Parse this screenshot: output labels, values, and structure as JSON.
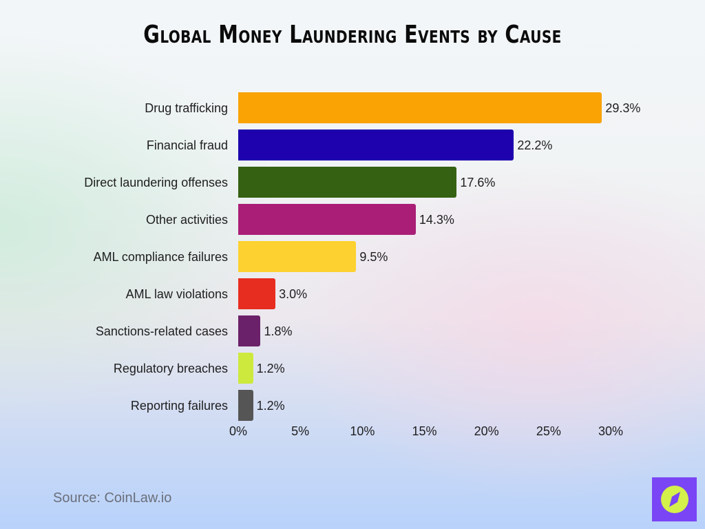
{
  "title": "Global Money Laundering Events by Cause",
  "source": "Source: CoinLaw.io",
  "logo": {
    "icon": "compass-icon",
    "bg_color": "#7a45f5",
    "circle_color": "#d4f04a"
  },
  "axis": {
    "ticks": [
      "0%",
      "5%",
      "10%",
      "15%",
      "20%",
      "25%",
      "30%"
    ],
    "tick_values": [
      0,
      5,
      10,
      15,
      20,
      25,
      30
    ]
  },
  "chart_data": {
    "type": "bar",
    "orientation": "horizontal",
    "title": "Global Money Laundering Events by Cause",
    "xlabel": "",
    "ylabel": "",
    "xlim": [
      0,
      30
    ],
    "x_ticks": [
      "0%",
      "5%",
      "10%",
      "15%",
      "20%",
      "25%",
      "30%"
    ],
    "grid": false,
    "legend": "none",
    "categories": [
      "Drug trafficking",
      "Financial fraud",
      "Direct laundering offenses",
      "Other activities",
      "AML compliance failures",
      "AML law violations",
      "Sanctions-related cases",
      "Regulatory breaches",
      "Reporting failures"
    ],
    "values": [
      29.3,
      22.2,
      17.6,
      14.3,
      9.5,
      3.0,
      1.8,
      1.2,
      1.2
    ],
    "value_labels": [
      "29.3%",
      "22.2%",
      "17.6%",
      "14.3%",
      "9.5%",
      "3.0%",
      "1.8%",
      "1.2%",
      "1.2%"
    ],
    "colors": [
      "#f9a305",
      "#1d02ad",
      "#356112",
      "#aa1e77",
      "#fdd12f",
      "#e72d20",
      "#6b2169",
      "#cde93e",
      "#555555"
    ],
    "source": "Source: CoinLaw.io"
  }
}
